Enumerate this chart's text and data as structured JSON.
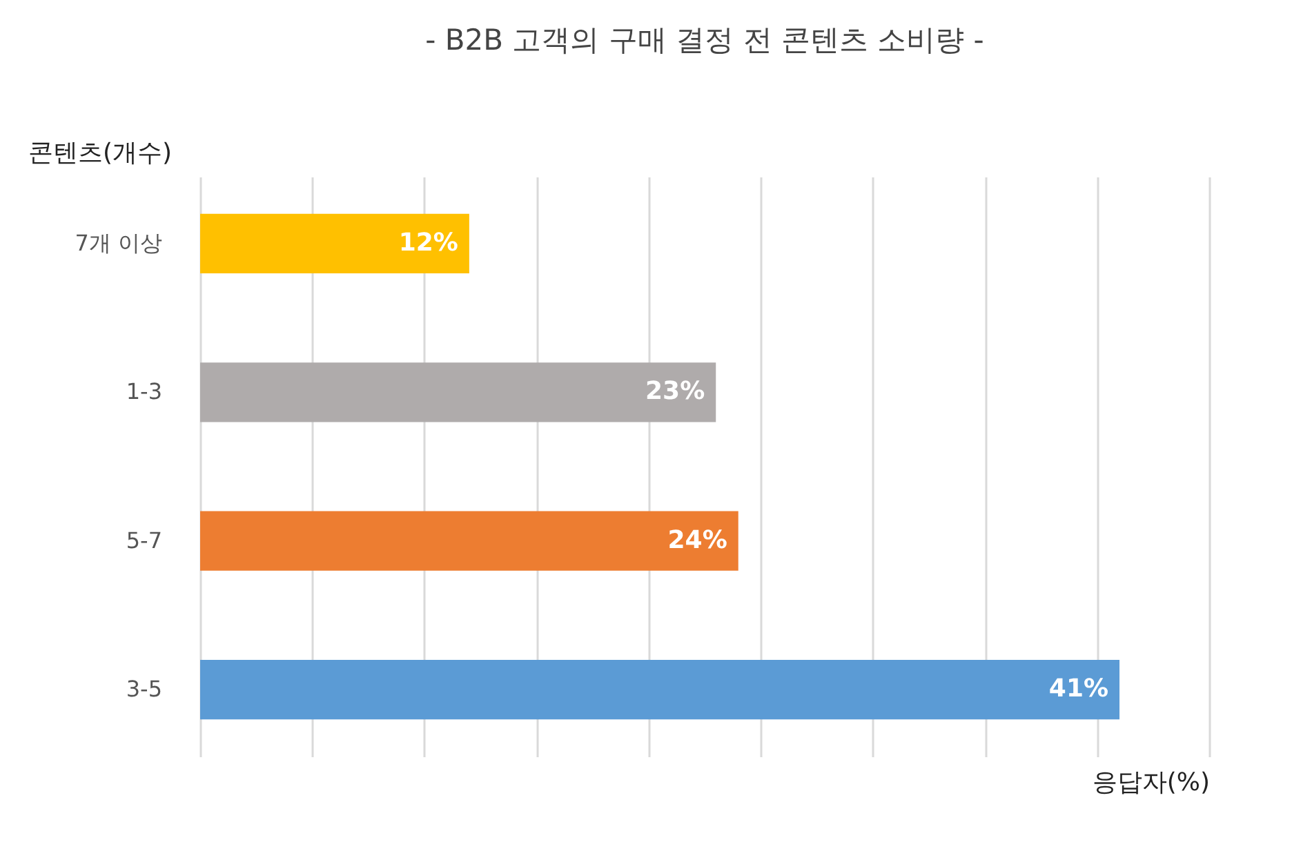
{
  "chart_data": {
    "type": "bar",
    "orientation": "horizontal",
    "title": "- B2B 고객의 구매 결정 전 콘텐츠 소비량 -",
    "ylabel": "콘텐츠(개수)",
    "xlabel": "응답자(%)",
    "categories": [
      "7개 이상",
      "1-3",
      "5-7",
      "3-5"
    ],
    "values": [
      12,
      23,
      24,
      41
    ],
    "colors": [
      "#ffc000",
      "#afabab",
      "#ed7d31",
      "#5b9bd5"
    ],
    "value_labels": [
      "12%",
      "23%",
      "24%",
      "41%"
    ],
    "xlim": [
      0,
      45
    ],
    "xticks": [
      {
        "value": 0,
        "label": null
      },
      {
        "value": 5,
        "label": null
      },
      {
        "value": 10,
        "label": null
      },
      {
        "value": 15,
        "label": null
      },
      {
        "value": 20,
        "label": null
      },
      {
        "value": 25,
        "label": null
      },
      {
        "value": 30,
        "label": null
      },
      {
        "value": 35,
        "label": null
      },
      {
        "value": 40,
        "label": null
      },
      {
        "value": 45,
        "label": null
      }
    ],
    "grid": "x",
    "tick_labels": "y",
    "legend": false
  }
}
